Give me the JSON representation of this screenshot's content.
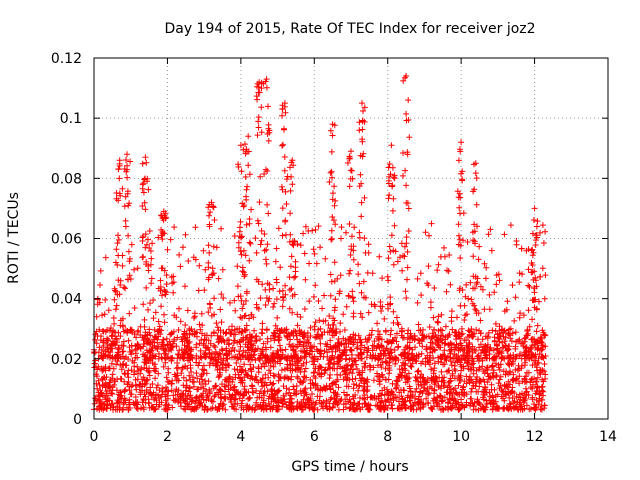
{
  "chart_data": {
    "type": "scatter",
    "title": "Day 194 of 2015, Rate Of TEC Index for receiver joz2",
    "xlabel": "GPS time / hours",
    "ylabel": "ROTI / TECUs",
    "xlim": [
      0,
      14
    ],
    "ylim": [
      0,
      0.12
    ],
    "x_ticks": [
      0,
      2,
      4,
      6,
      8,
      10,
      12,
      14
    ],
    "x_tick_labels": [
      "0",
      "2",
      "4",
      "6",
      "8",
      "10",
      "12",
      "14"
    ],
    "y_ticks": [
      0,
      0.02,
      0.04,
      0.06,
      0.08,
      0.1,
      0.12
    ],
    "y_tick_labels": [
      "0",
      "0.02",
      "0.04",
      "0.06",
      "0.08",
      "0.1",
      "0.12"
    ],
    "grid": true,
    "marker": "+",
    "color": "#ff0000",
    "series": [
      {
        "name": "ROTI",
        "x_range": [
          0,
          12.3
        ],
        "baseline_range": [
          0.003,
          0.03
        ],
        "peaks": [
          {
            "x": 0.7,
            "y": 0.086
          },
          {
            "x": 0.9,
            "y": 0.088
          },
          {
            "x": 1.4,
            "y": 0.087
          },
          {
            "x": 1.9,
            "y": 0.069
          },
          {
            "x": 3.2,
            "y": 0.072
          },
          {
            "x": 4.0,
            "y": 0.091
          },
          {
            "x": 4.2,
            "y": 0.094
          },
          {
            "x": 4.5,
            "y": 0.112
          },
          {
            "x": 4.7,
            "y": 0.113
          },
          {
            "x": 5.2,
            "y": 0.105
          },
          {
            "x": 5.4,
            "y": 0.086
          },
          {
            "x": 6.5,
            "y": 0.098
          },
          {
            "x": 7.0,
            "y": 0.089
          },
          {
            "x": 7.3,
            "y": 0.105
          },
          {
            "x": 8.1,
            "y": 0.091
          },
          {
            "x": 8.5,
            "y": 0.114
          },
          {
            "x": 10.0,
            "y": 0.092
          },
          {
            "x": 10.4,
            "y": 0.085
          },
          {
            "x": 12.0,
            "y": 0.07
          }
        ]
      }
    ]
  }
}
